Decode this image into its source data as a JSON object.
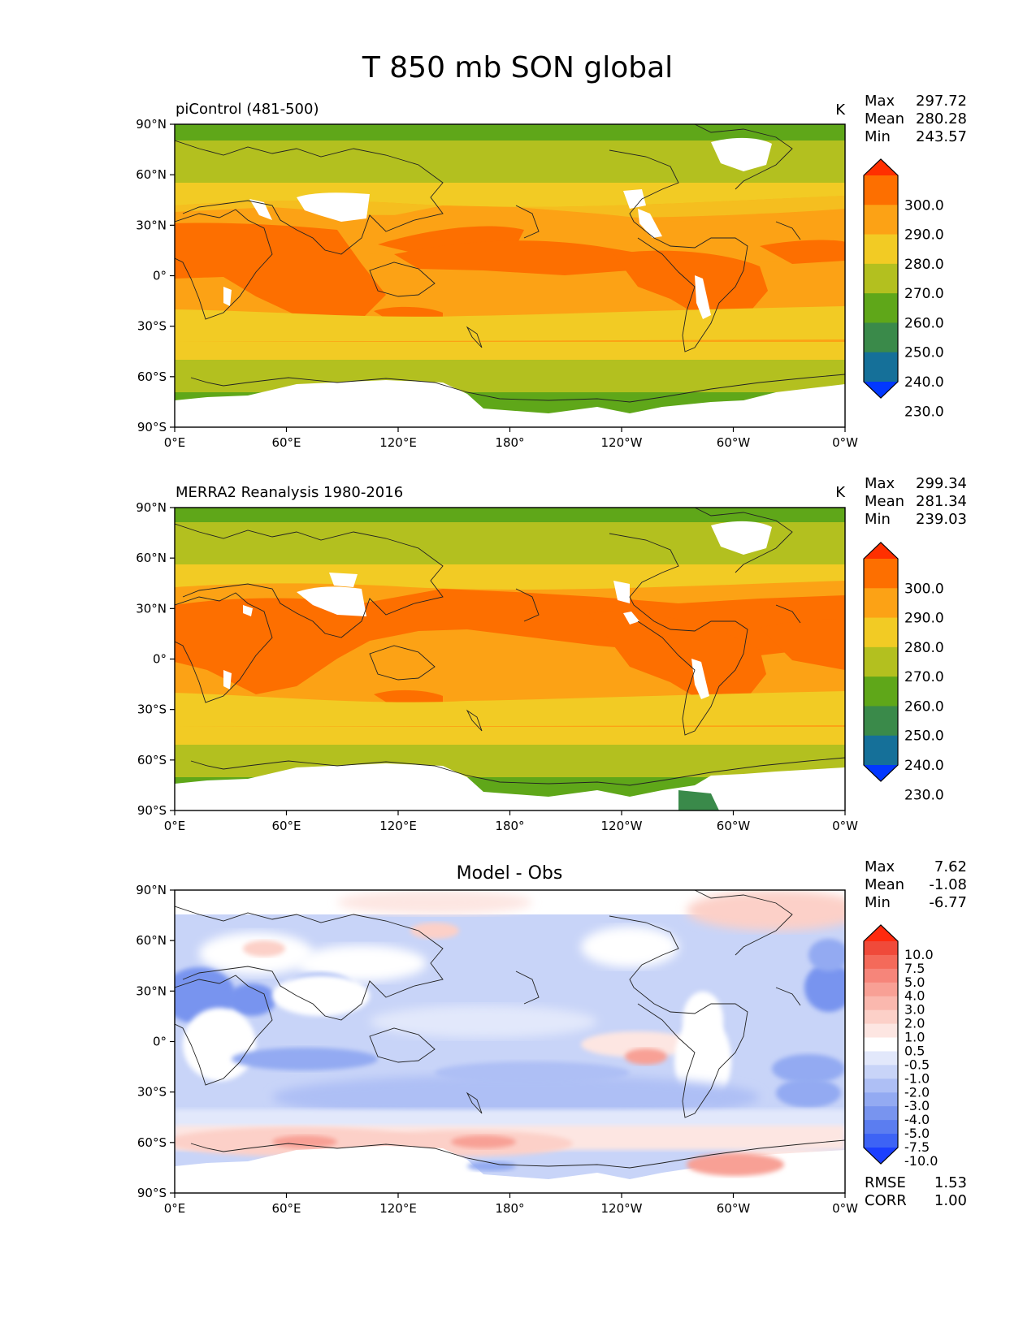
{
  "figure": {
    "title": "T 850 mb SON global"
  },
  "chart_data": [
    {
      "type": "heatmap",
      "title": "piControl (481-500)",
      "units": "K",
      "stats": {
        "max": "297.72",
        "mean": "280.28",
        "min": "243.57"
      },
      "xticks": [
        "0°E",
        "60°E",
        "120°E",
        "180°",
        "120°W",
        "60°W",
        "0°W"
      ],
      "yticks": [
        "90°N",
        "60°N",
        "30°N",
        "0°",
        "30°S",
        "60°S",
        "90°S"
      ],
      "xlim": [
        0,
        360
      ],
      "ylim": [
        -90,
        90
      ],
      "colorbar": {
        "labels": [
          "300.0",
          "290.0",
          "280.0",
          "270.0",
          "260.0",
          "250.0",
          "240.0",
          "230.0"
        ],
        "colors": [
          "#ff3000",
          "#fd6f00",
          "#fca215",
          "#f2cb24",
          "#b3c01f",
          "#5fa719",
          "#3a8a4a",
          "#157099",
          "#0238ff"
        ],
        "extend": "both"
      },
      "colormap": "temperature"
    },
    {
      "type": "heatmap",
      "title": "MERRA2 Reanalysis 1980-2016",
      "units": "K",
      "stats": {
        "max": "299.34",
        "mean": "281.34",
        "min": "239.03"
      },
      "xticks": [
        "0°E",
        "60°E",
        "120°E",
        "180°",
        "120°W",
        "60°W",
        "0°W"
      ],
      "yticks": [
        "90°N",
        "60°N",
        "30°N",
        "0°",
        "30°S",
        "60°S",
        "90°S"
      ],
      "xlim": [
        0,
        360
      ],
      "ylim": [
        -90,
        90
      ],
      "colorbar": {
        "labels": [
          "300.0",
          "290.0",
          "280.0",
          "270.0",
          "260.0",
          "250.0",
          "240.0",
          "230.0"
        ],
        "colors": [
          "#ff3000",
          "#fd6f00",
          "#fca215",
          "#f2cb24",
          "#b3c01f",
          "#5fa719",
          "#3a8a4a",
          "#157099",
          "#0238ff"
        ],
        "extend": "both"
      },
      "colormap": "temperature"
    },
    {
      "type": "heatmap",
      "title": "Model - Obs",
      "units": "",
      "stats": {
        "max": "7.62",
        "mean": "-1.08",
        "min": "-6.77"
      },
      "xticks": [
        "0°E",
        "60°E",
        "120°E",
        "180°",
        "120°W",
        "60°W",
        "0°W"
      ],
      "yticks": [
        "90°N",
        "60°N",
        "30°N",
        "0°",
        "30°S",
        "60°S",
        "90°S"
      ],
      "xlim": [
        0,
        360
      ],
      "ylim": [
        -90,
        90
      ],
      "colorbar": {
        "labels": [
          "10.0",
          "7.5",
          "5.0",
          "4.0",
          "3.0",
          "2.0",
          "1.0",
          "0.5",
          "-0.5",
          "-1.0",
          "-2.0",
          "-3.0",
          "-4.0",
          "-5.0",
          "-7.5",
          "-10.0"
        ],
        "colors": [
          "#ff2a0e",
          "#f04a3a",
          "#f46a5a",
          "#f6857a",
          "#f8a095",
          "#fab8ae",
          "#fcd0c8",
          "#fde6e2",
          "#ffffff",
          "#e2e8fb",
          "#c8d4f8",
          "#aebff5",
          "#93aaf2",
          "#7894ef",
          "#5b7df0",
          "#3d63f5",
          "#1b3fff"
        ],
        "extend": "both"
      },
      "metrics": {
        "RMSE": "1.53",
        "CORR": "1.00"
      },
      "colormap": "difference"
    }
  ]
}
